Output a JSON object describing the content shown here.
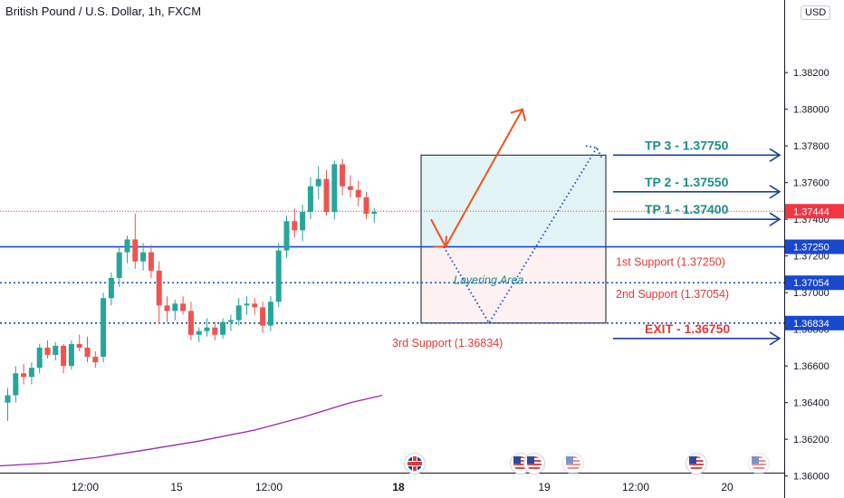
{
  "header": {
    "title": "British Pound / U.S. Dollar, 1h, FXCM",
    "currency": "USD"
  },
  "colors": {
    "bull": "#26a69a",
    "bear": "#ef5350",
    "tp": "#1e8c87",
    "support_text": "#e53935",
    "arrow_line": "#1e3fa0",
    "ema": "#9c27b0",
    "orange_arrow": "#f4511e"
  },
  "chart_data": {
    "type": "candlestick",
    "symbol": "GBPUSD",
    "interval": "1h",
    "ylim": [
      1.359,
      1.385
    ],
    "y_ticks": [
      "1.38200",
      "1.38000",
      "1.37800",
      "1.37600",
      "1.37400",
      "1.37200",
      "1.37000",
      "1.36800",
      "1.36600",
      "1.36400",
      "1.36200",
      "1.36000"
    ],
    "x_ticks": [
      "12:00",
      "15",
      "12:00",
      "18",
      "19",
      "12:00",
      "20"
    ],
    "candles": [
      [
        1.364,
        1.3648,
        1.363,
        1.3644
      ],
      [
        1.3644,
        1.366,
        1.364,
        1.3656
      ],
      [
        1.3656,
        1.3661,
        1.365,
        1.3654
      ],
      [
        1.3654,
        1.3662,
        1.365,
        1.3659
      ],
      [
        1.3659,
        1.3672,
        1.3656,
        1.367
      ],
      [
        1.367,
        1.3674,
        1.3664,
        1.3666
      ],
      [
        1.3666,
        1.3673,
        1.3663,
        1.3671
      ],
      [
        1.3671,
        1.3672,
        1.3656,
        1.366
      ],
      [
        1.366,
        1.3674,
        1.3658,
        1.3672
      ],
      [
        1.3672,
        1.3677,
        1.3668,
        1.367
      ],
      [
        1.367,
        1.3676,
        1.3662,
        1.3665
      ],
      [
        1.3665,
        1.3668,
        1.3659,
        1.3662
      ],
      [
        1.3665,
        1.37,
        1.3662,
        1.3697
      ],
      [
        1.3697,
        1.3711,
        1.3693,
        1.3708
      ],
      [
        1.3708,
        1.3725,
        1.3703,
        1.3722
      ],
      [
        1.3722,
        1.3731,
        1.3716,
        1.3729
      ],
      [
        1.3729,
        1.3743,
        1.3713,
        1.3717
      ],
      [
        1.3717,
        1.3727,
        1.3712,
        1.3722
      ],
      [
        1.3722,
        1.3726,
        1.3708,
        1.3712
      ],
      [
        1.3712,
        1.3717,
        1.3683,
        1.3693
      ],
      [
        1.3693,
        1.3698,
        1.3684,
        1.369
      ],
      [
        1.369,
        1.3696,
        1.3685,
        1.3694
      ],
      [
        1.3694,
        1.3698,
        1.3688,
        1.369
      ],
      [
        1.369,
        1.3695,
        1.3674,
        1.3677
      ],
      [
        1.3677,
        1.3681,
        1.3673,
        1.3679
      ],
      [
        1.3679,
        1.3686,
        1.3676,
        1.3681
      ],
      [
        1.3681,
        1.3684,
        1.3674,
        1.3677
      ],
      [
        1.3677,
        1.3686,
        1.3675,
        1.3684
      ],
      [
        1.3684,
        1.3688,
        1.3679,
        1.3685
      ],
      [
        1.3685,
        1.3697,
        1.3682,
        1.3693
      ],
      [
        1.3693,
        1.3698,
        1.3688,
        1.3694
      ],
      [
        1.3694,
        1.3697,
        1.3688,
        1.3692
      ],
      [
        1.3692,
        1.3695,
        1.3678,
        1.3682
      ],
      [
        1.3682,
        1.3698,
        1.3679,
        1.3695
      ],
      [
        1.3695,
        1.3727,
        1.3692,
        1.3723
      ],
      [
        1.3723,
        1.3742,
        1.3719,
        1.3739
      ],
      [
        1.3739,
        1.3746,
        1.373,
        1.3734
      ],
      [
        1.3734,
        1.3748,
        1.3728,
        1.3744
      ],
      [
        1.3744,
        1.3763,
        1.374,
        1.3758
      ],
      [
        1.3758,
        1.3769,
        1.3751,
        1.3762
      ],
      [
        1.3762,
        1.3767,
        1.3742,
        1.3744
      ],
      [
        1.3744,
        1.3772,
        1.374,
        1.377
      ],
      [
        1.377,
        1.3773,
        1.3753,
        1.3758
      ],
      [
        1.3758,
        1.3764,
        1.3752,
        1.3756
      ],
      [
        1.3756,
        1.3761,
        1.3747,
        1.3752
      ],
      [
        1.3752,
        1.3755,
        1.374,
        1.3743
      ],
      [
        1.3743,
        1.3746,
        1.3738,
        1.3744
      ]
    ],
    "ema_points": [
      [
        -3,
        1.3605
      ],
      [
        5,
        1.3607
      ],
      [
        11,
        1.361
      ],
      [
        17,
        1.3614
      ],
      [
        24,
        1.3619
      ],
      [
        31,
        1.3625
      ],
      [
        37,
        1.3632
      ],
      [
        43,
        1.364
      ],
      [
        47,
        1.3644
      ]
    ],
    "levels": [
      {
        "name": "current-price-line",
        "price": 1.37444,
        "style": "dotted-red"
      },
      {
        "name": "support-1-line",
        "price": 1.3725,
        "style": "solid"
      },
      {
        "name": "support-2-line",
        "price": 1.37054,
        "style": "dotted"
      },
      {
        "name": "support-3-line",
        "price": 1.36834,
        "style": "dotted"
      }
    ],
    "price_tags": [
      {
        "label": "1.37444",
        "price": 1.37444,
        "bg": "#f23645"
      },
      {
        "label": "1.37250",
        "price": 1.3725,
        "bg": "#1848cc"
      },
      {
        "label": "1.37054",
        "price": 1.37054,
        "bg": "#1848cc"
      },
      {
        "label": "1.36834",
        "price": 1.36834,
        "bg": "#1848cc"
      }
    ],
    "boxes": [
      {
        "name": "profit-zone-box",
        "from": 1.3725,
        "to": 1.3775,
        "fill": "#e3f4f7"
      },
      {
        "name": "layering-zone-box",
        "from": 1.36834,
        "to": 1.3725,
        "fill": "#fdf1f2"
      }
    ],
    "annotations": {
      "tp3": "TP 3 - 1.37750",
      "tp2": "TP 2 - 1.37550",
      "tp1": "TP 1 - 1.37400",
      "exit": "EXIT - 1.36750",
      "support1": "1st Support (1.37250)",
      "support2": "2nd Support (1.37054)",
      "support3": "3rd Support (1.36834)",
      "layering": "Layering Area"
    }
  },
  "events": [
    {
      "flag": "gb"
    },
    {
      "flag": "us"
    },
    {
      "flag": "us"
    },
    {
      "flag": "us"
    },
    {
      "flag": "us"
    },
    {
      "flag": "us"
    }
  ]
}
